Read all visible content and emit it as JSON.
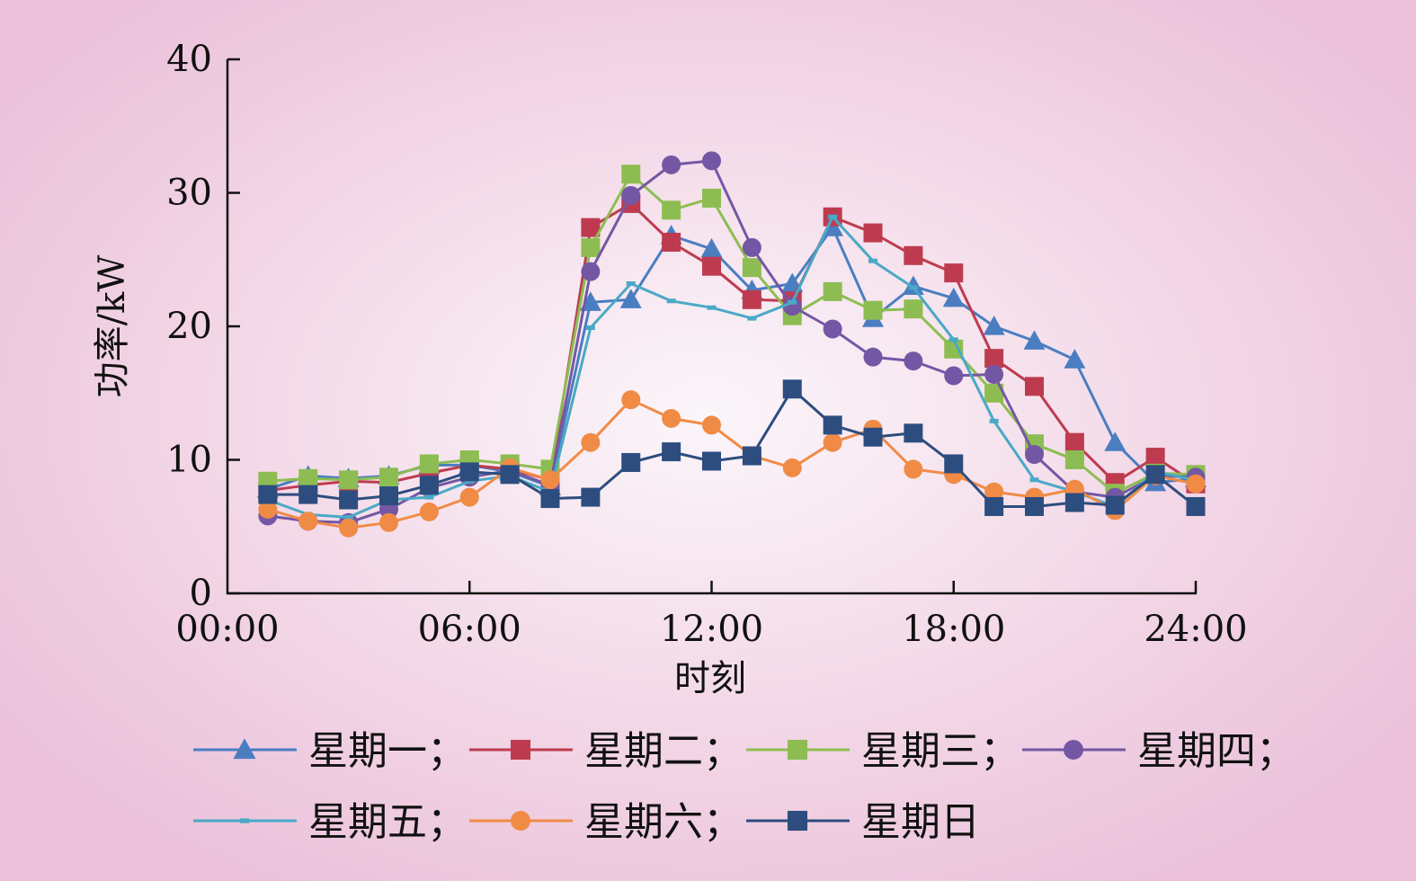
{
  "chart_data": {
    "type": "line",
    "xlabel": "时刻",
    "ylabel": "功率/kW",
    "xlim": [
      0,
      24
    ],
    "ylim": [
      0,
      40
    ],
    "x_ticks": [
      0,
      6,
      12,
      18,
      24
    ],
    "x_tick_labels": [
      "00:00",
      "06:00",
      "12:00",
      "18:00",
      "24:00"
    ],
    "y_ticks": [
      0,
      10,
      20,
      30,
      40
    ],
    "y_tick_labels": [
      "0",
      "10",
      "20",
      "30",
      "40"
    ],
    "grid": false,
    "legend_position": "bottom",
    "x": [
      1,
      2,
      3,
      4,
      5,
      6,
      7,
      8,
      9,
      10,
      11,
      12,
      13,
      14,
      15,
      16,
      17,
      18,
      19,
      20,
      21,
      22,
      23,
      24
    ],
    "series": [
      {
        "name": "星期一；",
        "color": "#4a7ec1",
        "marker": "triangle",
        "values": [
          7.8,
          8.8,
          8.6,
          8.8,
          9.6,
          9.6,
          9.1,
          8.0,
          21.8,
          22.0,
          26.8,
          25.8,
          22.7,
          23.2,
          27.4,
          20.6,
          23.0,
          22.1,
          20.0,
          18.9,
          17.5,
          11.3,
          8.3,
          8.6
        ]
      },
      {
        "name": "星期二；",
        "color": "#be3b4f",
        "marker": "square",
        "values": [
          7.7,
          8.1,
          8.4,
          8.3,
          9.0,
          9.6,
          9.3,
          8.5,
          27.4,
          29.2,
          26.3,
          24.5,
          22.0,
          21.9,
          28.2,
          27.0,
          25.3,
          24.0,
          17.6,
          15.5,
          11.3,
          8.3,
          10.2,
          8.2
        ]
      },
      {
        "name": "星期三；",
        "color": "#8dbd52",
        "marker": "square",
        "values": [
          8.4,
          8.6,
          8.5,
          8.7,
          9.7,
          10.0,
          9.7,
          9.3,
          25.9,
          31.4,
          28.7,
          29.6,
          24.4,
          20.8,
          22.6,
          21.2,
          21.3,
          18.3,
          15.0,
          11.2,
          10.0,
          7.5,
          9.0,
          8.9
        ]
      },
      {
        "name": "星期四；",
        "color": "#7457a4",
        "marker": "circle",
        "values": [
          5.8,
          5.4,
          5.3,
          6.3,
          7.9,
          8.7,
          9.2,
          8.1,
          24.1,
          29.8,
          32.1,
          32.4,
          25.9,
          21.5,
          19.8,
          17.7,
          17.4,
          16.3,
          16.4,
          10.4,
          7.6,
          7.2,
          8.8,
          8.7
        ]
      },
      {
        "name": "星期五；",
        "color": "#4aa9c6",
        "marker": "dash",
        "values": [
          7.0,
          5.9,
          5.7,
          7.0,
          7.2,
          8.4,
          8.8,
          7.6,
          19.9,
          23.2,
          21.9,
          21.4,
          20.6,
          21.8,
          28.2,
          24.9,
          22.9,
          19.0,
          12.9,
          8.5,
          7.6,
          6.5,
          9.1,
          8.5
        ]
      },
      {
        "name": "星期六；",
        "color": "#f08b46",
        "marker": "circle",
        "values": [
          6.3,
          5.4,
          4.9,
          5.3,
          6.1,
          7.2,
          9.4,
          8.5,
          11.3,
          14.5,
          13.1,
          12.6,
          10.3,
          9.4,
          11.3,
          12.3,
          9.3,
          8.9,
          7.6,
          7.2,
          7.8,
          6.2,
          8.8,
          8.2
        ]
      },
      {
        "name": "星期日",
        "color": "#2d4d7f",
        "marker": "square",
        "values": [
          7.4,
          7.4,
          7.0,
          7.3,
          8.1,
          9.1,
          8.9,
          7.1,
          7.2,
          9.8,
          10.6,
          9.9,
          10.3,
          15.3,
          12.6,
          11.7,
          12.0,
          9.7,
          6.5,
          6.5,
          6.8,
          6.6,
          8.9,
          6.5
        ]
      }
    ]
  }
}
